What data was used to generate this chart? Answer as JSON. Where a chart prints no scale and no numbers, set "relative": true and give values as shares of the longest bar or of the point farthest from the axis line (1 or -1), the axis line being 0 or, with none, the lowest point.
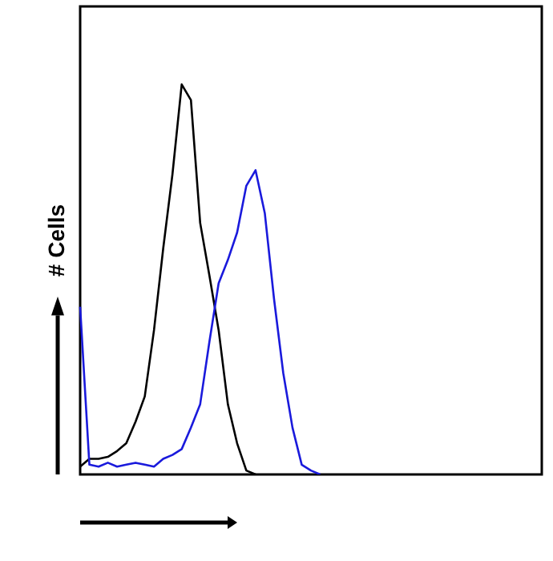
{
  "chart_data": {
    "type": "line",
    "ylabel": "# Cells",
    "relative": true,
    "legend": false,
    "grid": false,
    "categories": [
      null,
      null,
      null,
      null,
      null,
      null,
      null,
      null,
      null,
      null,
      null,
      null,
      null,
      null,
      null,
      null,
      null,
      null,
      null,
      null,
      null,
      null,
      null,
      null,
      null,
      null,
      null,
      null,
      null,
      null,
      null,
      null,
      null,
      null,
      null,
      null,
      null,
      null,
      null,
      null,
      null,
      null,
      null,
      null,
      null,
      null,
      null,
      null,
      null,
      null,
      null
    ],
    "series": [
      {
        "color": "#000000",
        "values": [
          0.02,
          0.04,
          0.04,
          0.045,
          0.06,
          0.08,
          0.135,
          0.2,
          0.37,
          0.58,
          0.77,
          1,
          0.96,
          0.645,
          0.51,
          0.37,
          0.18,
          0.08,
          0.01,
          0,
          null,
          null,
          null,
          null,
          null,
          null,
          null,
          null,
          null,
          null,
          null,
          null,
          null,
          null,
          null,
          null,
          null,
          null,
          null,
          null,
          null,
          null,
          null,
          null,
          null,
          null,
          null,
          null,
          null,
          null,
          null
        ]
      },
      {
        "color": "#1a1adc",
        "values": [
          0.43,
          0.025,
          0.02,
          0.03,
          0.02,
          0.025,
          0.03,
          0.025,
          0.02,
          0.04,
          0.05,
          0.065,
          0.12,
          0.18,
          0.34,
          0.49,
          0.55,
          0.62,
          0.74,
          0.78,
          0.67,
          0.45,
          0.26,
          0.12,
          0.025,
          0.01,
          0,
          null,
          null,
          null,
          null,
          null,
          null,
          null,
          null,
          null,
          null,
          null,
          null,
          null,
          null,
          null,
          null,
          null,
          null,
          null,
          null,
          null,
          null,
          null,
          null
        ]
      }
    ]
  }
}
